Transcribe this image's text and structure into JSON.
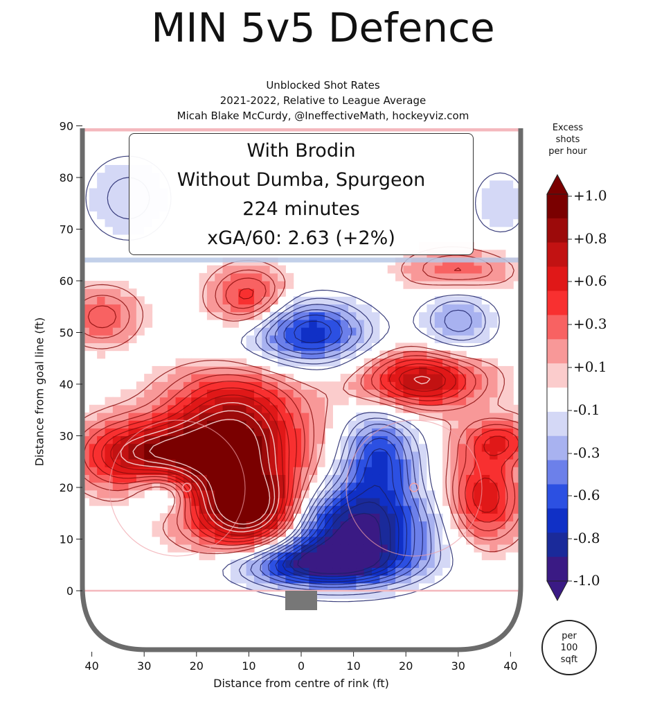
{
  "header": {
    "title": "MIN 5v5 Defence",
    "subtitle_line1": "Unblocked Shot Rates",
    "subtitle_line2": "2021-2022, Relative to League Average",
    "subtitle_line3": "Micah Blake McCurdy, @IneffectiveMath, hockeyviz.com"
  },
  "info_box": {
    "line1": "With Brodin",
    "line2": "Without Dumba, Spurgeon",
    "line3": "224 minutes",
    "line4": "xGA/60: 2.63 (+2%)"
  },
  "colorbar": {
    "title_line1": "Excess",
    "title_line2": "shots",
    "title_line3": "per hour",
    "tick_labels": [
      "+1.0",
      "+0.8",
      "+0.6",
      "+0.3",
      "+0.1",
      "-0.1",
      "-0.3",
      "-0.6",
      "-0.8",
      "-1.0"
    ],
    "colors": [
      "#7a0000",
      "#9c0a0a",
      "#c21212",
      "#e01818",
      "#f83030",
      "#f86262",
      "#f89898",
      "#fbcccc",
      "#ffffff",
      "#d4d8f6",
      "#a8b2f0",
      "#6c80ea",
      "#2c50e2",
      "#1030c6",
      "#1a2a9a",
      "#3a1a84"
    ],
    "unit_line1": "per",
    "unit_line2": "100",
    "unit_line3": "sqft"
  },
  "chart_data": {
    "type": "heatmap",
    "title": "MIN 5v5 Defence",
    "xlabel": "Distance from centre of rink (ft)",
    "ylabel": "Distance from goal line (ft)",
    "xlim": [
      -42,
      42
    ],
    "ylim": [
      -12,
      90
    ],
    "x_ticks": [
      -40,
      -30,
      -20,
      -10,
      0,
      10,
      20,
      30,
      40
    ],
    "x_tick_labels": [
      "40",
      "30",
      "20",
      "10",
      "0",
      "10",
      "20",
      "30",
      "40"
    ],
    "y_ticks": [
      0,
      10,
      20,
      30,
      40,
      50,
      60,
      70,
      80,
      90
    ],
    "y_tick_labels": [
      "0",
      "10",
      "20",
      "30",
      "40",
      "50",
      "60",
      "70",
      "80",
      "90"
    ],
    "colorbar_range": [
      -1.0,
      1.0
    ],
    "blobs": [
      {
        "x": -13,
        "y": 28,
        "amp": 1.0,
        "sx": 9,
        "sy": 10
      },
      {
        "x": -9,
        "y": 15,
        "amp": 0.8,
        "sx": 7,
        "sy": 5
      },
      {
        "x": -27,
        "y": 27,
        "amp": 0.55,
        "sx": 7,
        "sy": 4
      },
      {
        "x": -36,
        "y": 26,
        "amp": 0.35,
        "sx": 6,
        "sy": 5
      },
      {
        "x": 23,
        "y": 41,
        "amp": 0.75,
        "sx": 8,
        "sy": 4
      },
      {
        "x": 35,
        "y": 18,
        "amp": 0.6,
        "sx": 5,
        "sy": 6
      },
      {
        "x": 38,
        "y": 29,
        "amp": 0.45,
        "sx": 5,
        "sy": 3
      },
      {
        "x": -10,
        "y": 57,
        "amp": 0.45,
        "sx": 5,
        "sy": 4
      },
      {
        "x": -38,
        "y": 53,
        "amp": 0.35,
        "sx": 5,
        "sy": 4
      },
      {
        "x": 30,
        "y": 62,
        "amp": 0.35,
        "sx": 7,
        "sy": 3
      },
      {
        "x": 10,
        "y": 12,
        "amp": -0.95,
        "sx": 10,
        "sy": 6
      },
      {
        "x": 15,
        "y": 26,
        "amp": -0.6,
        "sx": 5,
        "sy": 6
      },
      {
        "x": 3,
        "y": 5,
        "amp": -0.75,
        "sx": 11,
        "sy": 3
      },
      {
        "x": 2,
        "y": 51,
        "amp": -0.55,
        "sx": 7,
        "sy": 4
      },
      {
        "x": -3,
        "y": 47,
        "amp": -0.25,
        "sx": 14,
        "sy": 4
      },
      {
        "x": 30,
        "y": 52,
        "amp": -0.35,
        "sx": 5,
        "sy": 5
      },
      {
        "x": -26,
        "y": 19,
        "amp": -0.35,
        "sx": 4,
        "sy": 3
      },
      {
        "x": -33,
        "y": 76,
        "amp": -0.25,
        "sx": 6,
        "sy": 6
      },
      {
        "x": 38,
        "y": 75,
        "amp": -0.2,
        "sx": 4,
        "sy": 5
      }
    ]
  }
}
